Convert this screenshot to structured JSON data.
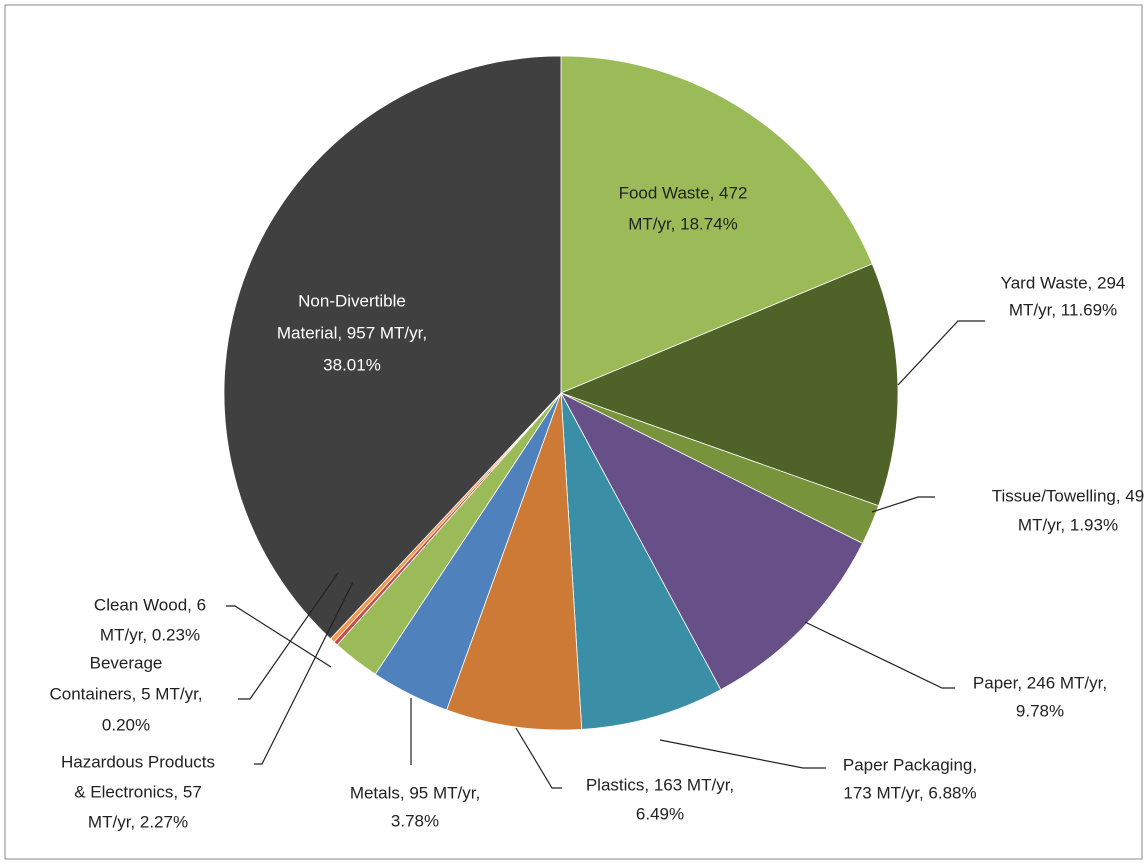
{
  "chart_data": {
    "type": "pie",
    "values": [
      18.74,
      11.69,
      1.93,
      9.78,
      6.88,
      6.49,
      3.78,
      2.27,
      0.2,
      0.23,
      38.01
    ],
    "value_labels": [
      [
        "Food Waste, 472",
        "MT/yr, 18.74%"
      ],
      [
        "Yard Waste, 294",
        "MT/yr, 11.69%"
      ],
      [
        "Tissue/Towelling, 49",
        "MT/yr, 1.93%"
      ],
      [
        "Paper, 246 MT/yr,",
        "9.78%"
      ],
      [
        "Paper Packaging,",
        "173 MT/yr, 6.88%"
      ],
      [
        "Plastics, 163 MT/yr,",
        "6.49%"
      ],
      [
        "Metals, 95 MT/yr,",
        "3.78%"
      ],
      [
        "Hazardous Products",
        "& Electronics, 57",
        "MT/yr, 2.27%"
      ],
      [
        "Beverage",
        "Containers, 5 MT/yr,",
        "0.20%"
      ],
      [
        "Clean Wood, 6",
        "MT/yr, 0.23%"
      ],
      [
        "Non-Divertible",
        "Material, 957 MT/yr,",
        "38.01%"
      ]
    ],
    "colors": [
      "#9bbb59",
      "#4f6228",
      "#77933c",
      "#674f88",
      "#3a8ea5",
      "#cd7a37",
      "#4f81bd",
      "#9bbb59",
      "#c0504d",
      "#f79646",
      "#404040"
    ]
  }
}
